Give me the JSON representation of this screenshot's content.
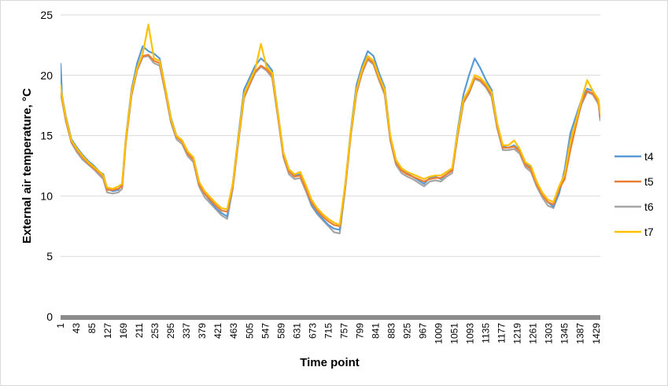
{
  "chart_data": {
    "type": "line",
    "title": "",
    "xlabel": "Time point",
    "ylabel": "External air temperature, °C",
    "ylim": [
      0,
      25
    ],
    "xlim": [
      1,
      1440
    ],
    "y_ticks": [
      "0",
      "5",
      "10",
      "15",
      "20",
      "25"
    ],
    "x_ticks": [
      1,
      43,
      85,
      127,
      169,
      211,
      253,
      295,
      337,
      379,
      421,
      463,
      505,
      547,
      589,
      631,
      673,
      715,
      757,
      799,
      841,
      883,
      925,
      967,
      1009,
      1051,
      1093,
      1135,
      1177,
      1219,
      1261,
      1303,
      1345,
      1387,
      1429
    ],
    "x_tick_labels": [
      "1",
      "43",
      "85",
      "127",
      "169",
      "211",
      "253",
      "295",
      "337",
      "379",
      "421",
      "463",
      "505",
      "547",
      "589",
      "631",
      "673",
      "715",
      "757",
      "799",
      "841",
      "883",
      "925",
      "967",
      "1009",
      "1051",
      "1093",
      "1135",
      "1177",
      "1219",
      "1261",
      "1303",
      "1345",
      "1387",
      "1429"
    ],
    "grid": "horizontal",
    "legend_position": "right",
    "x": [
      1,
      5,
      15,
      30,
      45,
      60,
      75,
      90,
      105,
      115,
      125,
      140,
      155,
      165,
      175,
      190,
      205,
      220,
      235,
      250,
      265,
      280,
      295,
      310,
      325,
      340,
      355,
      370,
      385,
      400,
      415,
      430,
      445,
      460,
      475,
      490,
      505,
      520,
      535,
      550,
      565,
      580,
      595,
      610,
      625,
      640,
      655,
      670,
      685,
      700,
      715,
      730,
      745,
      760,
      775,
      790,
      805,
      820,
      835,
      850,
      865,
      880,
      895,
      910,
      925,
      940,
      955,
      970,
      985,
      1000,
      1015,
      1030,
      1045,
      1060,
      1075,
      1090,
      1105,
      1120,
      1135,
      1150,
      1165,
      1180,
      1195,
      1210,
      1225,
      1240,
      1255,
      1270,
      1285,
      1300,
      1315,
      1330,
      1345,
      1360,
      1375,
      1390,
      1405,
      1420,
      1435,
      1440
    ],
    "series": [
      {
        "name": "t4",
        "color": "#5b9bd5",
        "values": [
          21.0,
          18.3,
          16.6,
          14.7,
          14.0,
          13.4,
          12.9,
          12.5,
          12.0,
          11.8,
          10.6,
          10.4,
          10.5,
          11.0,
          14.8,
          18.8,
          21.0,
          22.4,
          22.0,
          21.8,
          21.4,
          19.0,
          16.5,
          15.0,
          14.6,
          13.6,
          13.2,
          11.2,
          10.2,
          9.6,
          9.0,
          8.6,
          8.3,
          11.0,
          15.0,
          18.8,
          19.8,
          20.8,
          21.4,
          21.0,
          20.4,
          17.0,
          13.6,
          12.2,
          11.7,
          11.8,
          10.7,
          9.3,
          8.6,
          8.1,
          7.6,
          7.3,
          7.2,
          11.0,
          15.5,
          19.2,
          20.8,
          22.0,
          21.6,
          20.2,
          19.0,
          15.0,
          13.0,
          12.3,
          11.9,
          11.6,
          11.3,
          11.0,
          11.5,
          11.6,
          11.4,
          11.8,
          12.2,
          15.5,
          18.4,
          20.0,
          21.4,
          20.6,
          19.6,
          18.8,
          16.0,
          14.1,
          14.0,
          14.2,
          13.8,
          12.8,
          12.3,
          11.2,
          10.2,
          9.5,
          9.1,
          10.2,
          12.2,
          15.2,
          16.6,
          18.0,
          18.9,
          18.7,
          17.9,
          16.4
        ]
      },
      {
        "name": "t5",
        "color": "#ed7d31",
        "values": [
          18.8,
          18.0,
          16.3,
          14.5,
          13.8,
          13.2,
          12.7,
          12.3,
          11.9,
          11.6,
          10.5,
          10.5,
          10.6,
          10.8,
          14.5,
          18.4,
          20.5,
          21.6,
          21.7,
          21.2,
          21.0,
          18.8,
          16.3,
          14.9,
          14.5,
          13.5,
          13.0,
          11.0,
          10.2,
          9.7,
          9.2,
          8.8,
          8.7,
          10.8,
          14.6,
          18.2,
          19.3,
          20.3,
          20.8,
          20.5,
          20.0,
          16.8,
          13.4,
          12.0,
          11.6,
          11.7,
          10.6,
          9.5,
          8.8,
          8.3,
          7.9,
          7.6,
          7.5,
          10.8,
          15.2,
          18.6,
          20.3,
          21.4,
          21.0,
          19.7,
          18.6,
          14.8,
          12.8,
          12.1,
          11.8,
          11.6,
          11.4,
          11.2,
          11.4,
          11.5,
          11.5,
          11.8,
          12.1,
          15.1,
          17.8,
          18.6,
          19.8,
          19.6,
          19.1,
          18.4,
          15.8,
          14.0,
          14.0,
          14.1,
          13.7,
          12.6,
          12.2,
          11.0,
          10.1,
          9.5,
          9.3,
          10.6,
          11.4,
          13.8,
          15.8,
          17.8,
          18.7,
          18.5,
          17.8,
          16.5
        ]
      },
      {
        "name": "t6",
        "color": "#a5a5a5",
        "values": [
          18.5,
          17.9,
          16.2,
          14.4,
          13.6,
          13.0,
          12.6,
          12.2,
          11.7,
          11.4,
          10.3,
          10.2,
          10.3,
          10.6,
          14.4,
          18.3,
          20.4,
          21.5,
          21.6,
          21.0,
          20.8,
          18.6,
          16.1,
          14.7,
          14.3,
          13.3,
          12.8,
          10.8,
          9.9,
          9.4,
          8.9,
          8.4,
          8.1,
          10.6,
          14.5,
          18.1,
          19.2,
          20.2,
          20.7,
          20.4,
          19.8,
          16.6,
          13.2,
          11.8,
          11.4,
          11.5,
          10.4,
          9.2,
          8.5,
          8.0,
          7.5,
          7.0,
          6.9,
          10.6,
          15.1,
          18.5,
          20.2,
          21.3,
          20.9,
          19.6,
          18.4,
          14.6,
          12.6,
          11.9,
          11.6,
          11.4,
          11.1,
          10.8,
          11.2,
          11.3,
          11.2,
          11.6,
          11.9,
          15.0,
          17.7,
          18.5,
          19.7,
          19.5,
          19.0,
          18.2,
          15.6,
          13.8,
          13.8,
          13.9,
          13.5,
          12.4,
          12.0,
          10.8,
          9.9,
          9.2,
          9.0,
          10.3,
          11.8,
          14.8,
          16.0,
          17.6,
          18.6,
          18.4,
          17.6,
          16.2
        ]
      },
      {
        "name": "t7",
        "color": "#ffc000",
        "values": [
          19.2,
          18.2,
          16.5,
          14.6,
          13.9,
          13.3,
          12.8,
          12.4,
          12.0,
          11.7,
          10.7,
          10.6,
          10.8,
          11.0,
          14.7,
          18.6,
          20.6,
          21.8,
          24.2,
          21.4,
          21.2,
          19.0,
          16.4,
          15.0,
          14.6,
          13.7,
          13.2,
          11.2,
          10.4,
          9.9,
          9.4,
          9.0,
          8.9,
          11.0,
          14.8,
          18.4,
          19.5,
          20.5,
          22.6,
          20.7,
          20.2,
          17.0,
          13.6,
          12.2,
          11.8,
          12.0,
          10.9,
          9.7,
          9.0,
          8.5,
          8.1,
          7.8,
          7.6,
          11.0,
          15.4,
          18.8,
          20.5,
          21.6,
          21.2,
          19.9,
          18.8,
          15.0,
          13.0,
          12.3,
          12.0,
          11.8,
          11.6,
          11.4,
          11.6,
          11.7,
          11.7,
          12.0,
          12.3,
          15.3,
          18.0,
          18.8,
          20.0,
          19.8,
          19.3,
          18.6,
          16.0,
          14.2,
          14.2,
          14.6,
          13.9,
          12.8,
          12.5,
          11.2,
          10.3,
          9.7,
          9.5,
          10.8,
          11.8,
          14.5,
          16.2,
          18.0,
          19.6,
          18.7,
          18.0,
          16.8
        ]
      }
    ]
  }
}
